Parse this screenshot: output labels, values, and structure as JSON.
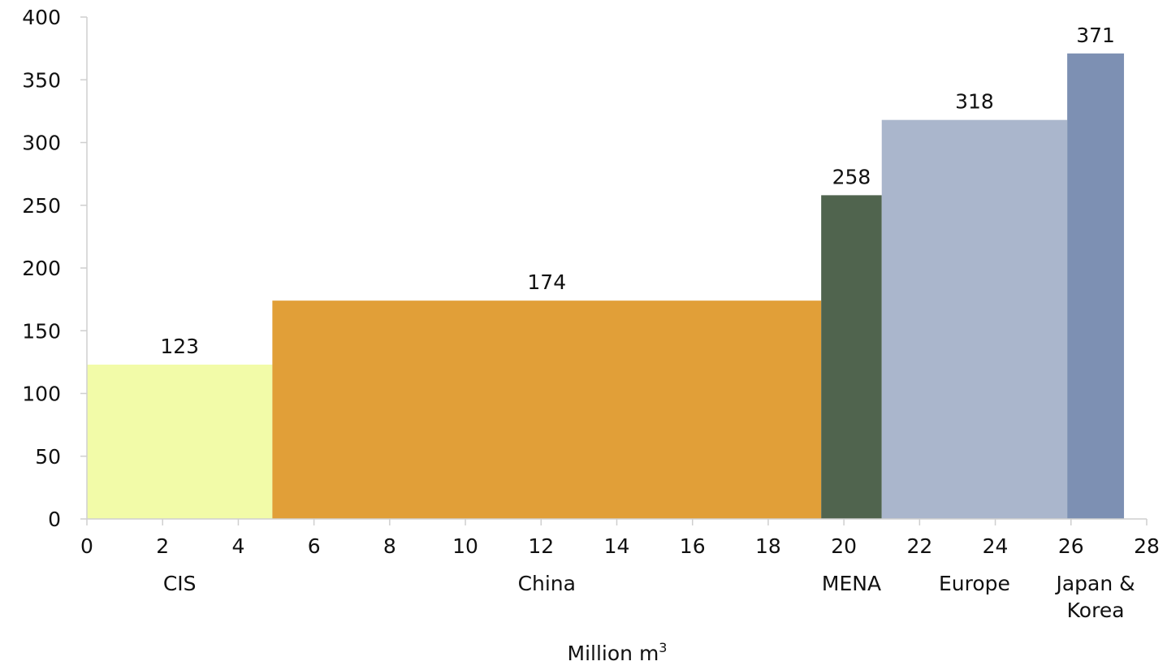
{
  "chart_data": {
    "type": "bar",
    "subtype": "variable-width",
    "title": "",
    "xlabel": "Million m³",
    "ylabel": "",
    "xlim": [
      0,
      28
    ],
    "ylim": [
      0,
      400
    ],
    "xticks": [
      0,
      2,
      4,
      6,
      8,
      10,
      12,
      14,
      16,
      18,
      20,
      22,
      24,
      26,
      28
    ],
    "yticks": [
      0,
      50,
      100,
      150,
      200,
      250,
      300,
      350,
      400
    ],
    "grid": false,
    "legend": "none",
    "bars": [
      {
        "category": "CIS",
        "x_start": 0,
        "x_end": 4.9,
        "value": 123,
        "label": "123",
        "color": "#F2FBA8"
      },
      {
        "category": "China",
        "x_start": 4.9,
        "x_end": 19.4,
        "value": 174,
        "label": "174",
        "color": "#E19F38"
      },
      {
        "category": "MENA",
        "x_start": 19.4,
        "x_end": 21.0,
        "value": 258,
        "label": "258",
        "color": "#50644E"
      },
      {
        "category": "Europe",
        "x_start": 21.0,
        "x_end": 25.9,
        "value": 318,
        "label": "318",
        "color": "#AAB6CC"
      },
      {
        "category": "Japan & Korea",
        "x_start": 25.9,
        "x_end": 27.4,
        "value": 371,
        "label": "371",
        "color": "#7D90B3"
      }
    ]
  }
}
